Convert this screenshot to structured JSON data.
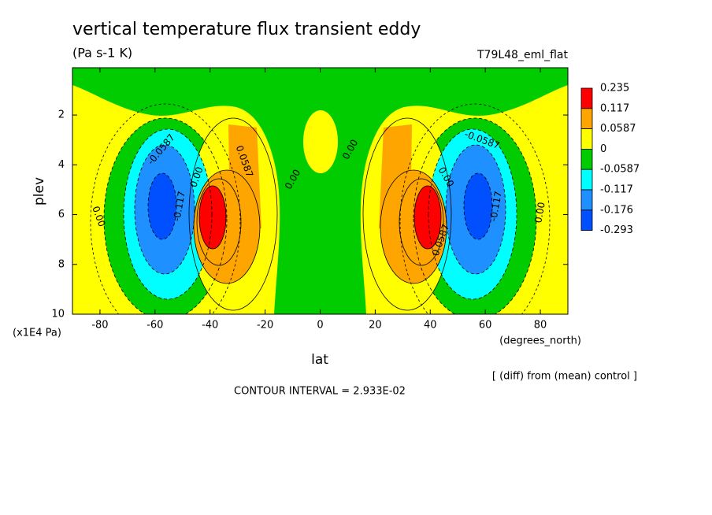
{
  "chart_data": {
    "type": "contour",
    "title": "vertical temperature flux transient eddy",
    "subtitle": "(Pa s-1 K)",
    "run_label": "T79L48_eml_flat",
    "x_label": "lat",
    "x_unit": "(degrees_north)",
    "y_label": "plev",
    "y_unit": "(x1E4 Pa)",
    "xlim": [
      -90,
      90
    ],
    "xticks": [
      -80,
      -60,
      -40,
      -20,
      0,
      20,
      40,
      60,
      80
    ],
    "ylim": [
      10,
      0.1
    ],
    "yticks": [
      2,
      4,
      6,
      8,
      10
    ],
    "levels": [
      0.235,
      0.117,
      0.0587,
      0,
      -0.0587,
      -0.117,
      -0.176,
      -0.293
    ],
    "colors": [
      "#ff0000",
      "#ffa500",
      "#ffff00",
      "#00cc00",
      "#00ffff",
      "#1e90ff",
      "#0050ff"
    ],
    "contour_labels": [
      {
        "value": -0.0587,
        "label": "-0.0587"
      },
      {
        "value": 0.0587,
        "label": "0.0587"
      },
      {
        "value": 0,
        "label": "0.00"
      },
      {
        "value": 0,
        "label": "0.00"
      },
      {
        "value": 0,
        "label": "0.00"
      },
      {
        "value": -0.117,
        "label": "-0.117"
      },
      {
        "value": 0,
        "label": "0.00"
      },
      {
        "value": -0.0587,
        "label": "-0.0587"
      },
      {
        "value": 0,
        "label": "0.00"
      },
      {
        "value": 0.0587,
        "label": "0.0587"
      },
      {
        "value": -0.117,
        "label": "-0.117"
      },
      {
        "value": 0,
        "label": "0.00"
      }
    ],
    "comparison": "[ (diff) from (mean) control ]",
    "contour_interval": "CONTOUR INTERVAL = 2.933E-02"
  }
}
